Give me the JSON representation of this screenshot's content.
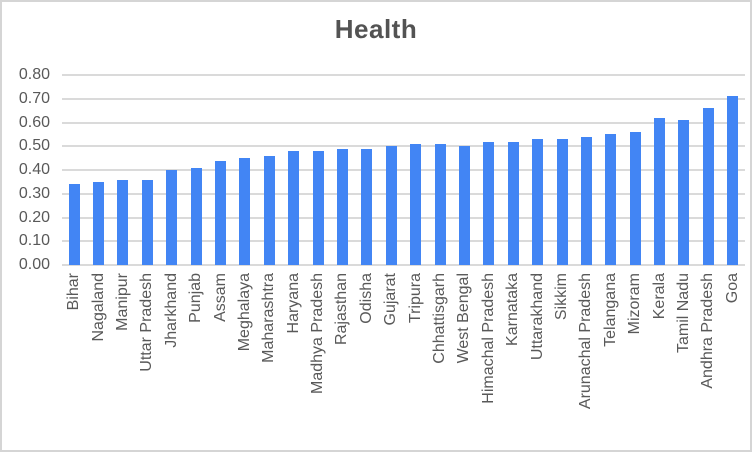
{
  "chart_data": {
    "type": "bar",
    "title": "Health",
    "xlabel": "",
    "ylabel": "",
    "legend": "none",
    "grid": true,
    "ylim": [
      0,
      0.8
    ],
    "y_ticks": [
      0.0,
      0.1,
      0.2,
      0.3,
      0.4,
      0.5,
      0.6,
      0.7,
      0.8
    ],
    "y_tick_labels": [
      "0.00",
      "0.10",
      "0.20",
      "0.30",
      "0.40",
      "0.50",
      "0.60",
      "0.70",
      "0.80"
    ],
    "categories": [
      "Bihar",
      "Nagaland",
      "Manipur",
      "Uttar Pradesh",
      "Jharkhand",
      "Punjab",
      "Assam",
      "Meghalaya",
      "Maharashtra",
      "Haryana",
      "Madhya Pradesh",
      "Rajasthan",
      "Odisha",
      "Gujarat",
      "Tripura",
      "Chhattisgarh",
      "West Bengal",
      "Himachal Pradesh",
      "Karnataka",
      "Uttarakhand",
      "Sikkim",
      "Arunachal Pradesh",
      "Telangana",
      "Mizoram",
      "Kerala",
      "Tamil Nadu",
      "Andhra Pradesh",
      "Goa"
    ],
    "values": [
      0.34,
      0.35,
      0.36,
      0.36,
      0.4,
      0.41,
      0.44,
      0.45,
      0.46,
      0.48,
      0.48,
      0.49,
      0.49,
      0.5,
      0.51,
      0.51,
      0.5,
      0.52,
      0.52,
      0.53,
      0.53,
      0.54,
      0.55,
      0.56,
      0.62,
      0.61,
      0.66,
      0.71
    ]
  },
  "colors": {
    "bar": "#4285F4",
    "gridline": "#DADADA",
    "axis-text": "#595959",
    "title-text": "#535353",
    "frame-border": "#D5D5D5",
    "background": "#FFFFFF"
  }
}
